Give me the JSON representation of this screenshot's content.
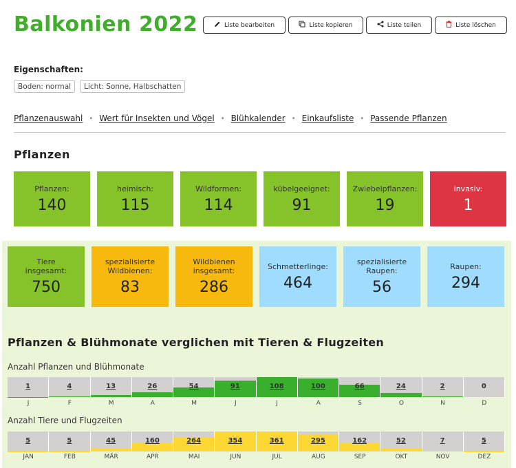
{
  "page": {
    "title": "Balkonien 2022"
  },
  "toolbar": {
    "edit": "Liste bearbeiten",
    "copy": "Liste kopieren",
    "share": "Liste teilen",
    "delete": "Liste löschen"
  },
  "properties": {
    "label": "Eigenschaften:",
    "soil": "Boden: normal",
    "light": "Licht: Sonne, Halbschatten"
  },
  "nav": {
    "items": [
      "Pflanzenauswahl",
      "Wert für Insekten und Vögel",
      "Blühkalender",
      "Einkaufsliste",
      "Passende Pflanzen"
    ]
  },
  "plants": {
    "heading": "Pflanzen",
    "tiles": [
      {
        "label": "Pflanzen:",
        "value": "140",
        "color": "#86c32b"
      },
      {
        "label": "heimisch:",
        "value": "115",
        "color": "#86c32b"
      },
      {
        "label": "Wildformen:",
        "value": "114",
        "color": "#86c32b"
      },
      {
        "label": "kübelgeeignet:",
        "value": "91",
        "color": "#86c32b"
      },
      {
        "label": "Zwiebelpflanzen:",
        "value": "19",
        "color": "#86c32b"
      },
      {
        "label": "invasiv:",
        "value": "1",
        "color": "#de3545"
      }
    ]
  },
  "animals": {
    "tiles": [
      {
        "label": "Tiere insgesamt:",
        "value": "750",
        "color": "#86c32b"
      },
      {
        "label": "spezialisierte Wildbienen:",
        "value": "83",
        "color": "#f7b90d"
      },
      {
        "label": "Wildbienen insgesamt:",
        "value": "286",
        "color": "#f7b90d"
      },
      {
        "label": "Schmetterlinge:",
        "value": "464",
        "color": "#9fdcfd"
      },
      {
        "label": "spezialisierte Raupen:",
        "value": "56",
        "color": "#9fdcfd"
      },
      {
        "label": "Raupen:",
        "value": "294",
        "color": "#9fdcfd"
      }
    ]
  },
  "comparison": {
    "heading": "Pflanzen & Blühmonate verglichen mit Tieren & Flugzeiten",
    "plants_label": "Anzahl Pflanzen und Blühmonate",
    "animals_label": "Anzahl Tiere und Flugzeiten",
    "plants_months": [
      "J",
      "F",
      "M",
      "A",
      "M",
      "J",
      "J",
      "A",
      "S",
      "O",
      "N",
      "D"
    ],
    "animals_months": [
      "JAN",
      "FEB",
      "MÄR",
      "APR",
      "MAI",
      "JUN",
      "JUL",
      "AUG",
      "SEP",
      "OKT",
      "NOV",
      "DEZ"
    ],
    "plants_values": [
      1,
      4,
      13,
      26,
      54,
      91,
      108,
      100,
      66,
      24,
      2,
      0
    ],
    "animals_values": [
      5,
      5,
      45,
      160,
      264,
      354,
      361,
      295,
      162,
      52,
      7,
      5
    ],
    "plants_color": "#3aaf2e",
    "animals_color": "#fdd835",
    "track_color": "#d3d1d0"
  }
}
